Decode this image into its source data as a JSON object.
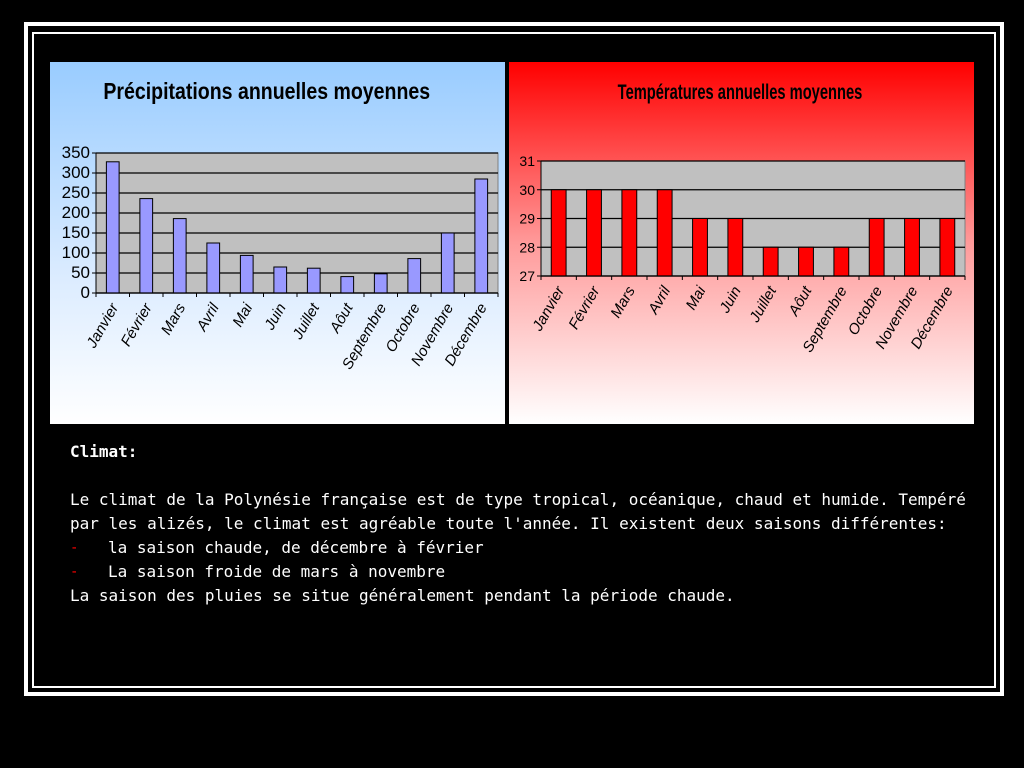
{
  "colors": {
    "precip_bar": "#9999ff",
    "temp_bar": "#ff0000"
  },
  "chart_data": [
    {
      "type": "bar",
      "title": "Précipitations annuelles moyennes",
      "categories": [
        "Janvier",
        "Février",
        "Mars",
        "Avril",
        "Mai",
        "Juin",
        "Juillet",
        "Aôut",
        "Septembre",
        "Octobre",
        "Novembre",
        "Décembre"
      ],
      "values": [
        328,
        236,
        186,
        125,
        94,
        65,
        62,
        41,
        48,
        86,
        150,
        285
      ],
      "ylim": [
        0,
        350
      ],
      "yticks": [
        0,
        50,
        100,
        150,
        200,
        250,
        300,
        350
      ],
      "grid": true,
      "xlabel": "",
      "ylabel": ""
    },
    {
      "type": "bar",
      "title": "Températures annuelles moyennes",
      "categories": [
        "Janvier",
        "Février",
        "Mars",
        "Avril",
        "Mai",
        "Juin",
        "Juillet",
        "Aôut",
        "Septembre",
        "Octobre",
        "Novembre",
        "Décembre"
      ],
      "values": [
        30,
        30,
        30,
        30,
        29,
        29,
        28,
        28,
        28,
        29,
        29,
        29
      ],
      "ylim": [
        27,
        31
      ],
      "yticks": [
        27,
        28,
        29,
        30,
        31
      ],
      "grid": true,
      "xlabel": "",
      "ylabel": ""
    }
  ],
  "text": {
    "heading": "Climat:",
    "line1": "Le climat de la Polynésie française est de type tropical, océanique, chaud et humide. Tempéré par les alizés, le climat est agréable toute l'année. Il existent deux saisons différentes:",
    "bullet_marker": "-",
    "bullet1": "la saison chaude, de décembre à février",
    "bullet2": "La saison froide de mars à novembre",
    "closing": "La saison des pluies se situe généralement pendant la période chaude."
  }
}
